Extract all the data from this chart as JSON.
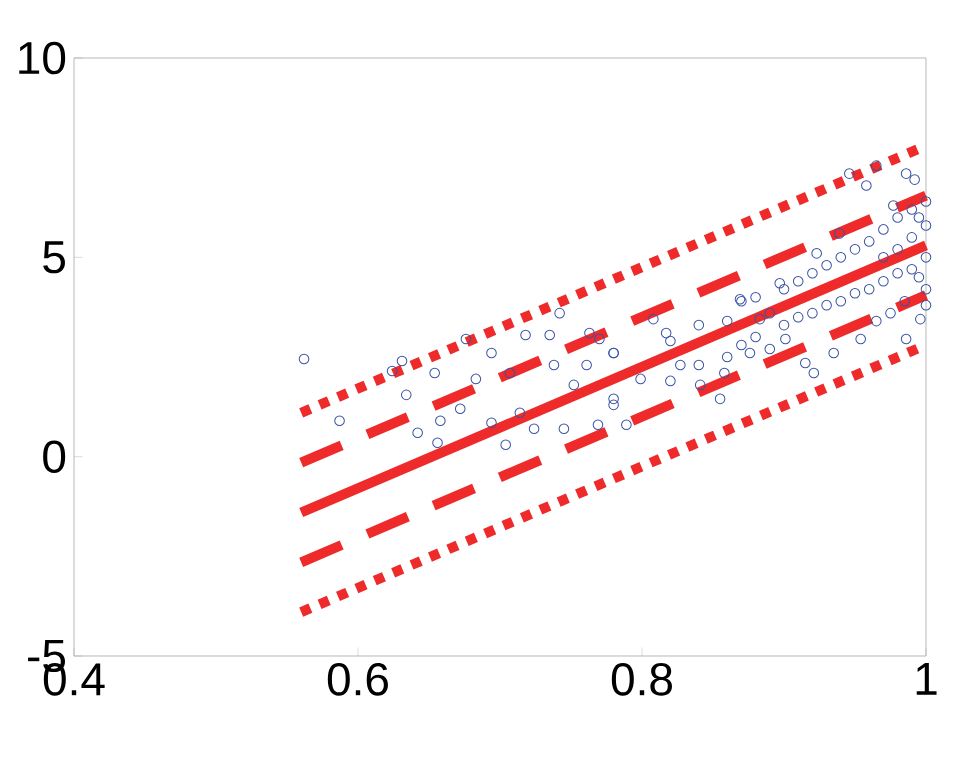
{
  "chart_data": {
    "type": "scatter",
    "xlim": [
      0.4,
      1
    ],
    "ylim": [
      -5,
      10
    ],
    "xticks": [
      0.4,
      0.6,
      0.8,
      1
    ],
    "yticks": [
      -5,
      0,
      5,
      10
    ],
    "series": [
      {
        "type": "scatter",
        "marker": "circle",
        "color": "#3953a4",
        "x": [
          0.562,
          0.587,
          0.631,
          0.624,
          0.654,
          0.634,
          0.642,
          0.658,
          0.656,
          0.676,
          0.672,
          0.683,
          0.694,
          0.694,
          0.707,
          0.718,
          0.714,
          0.724,
          0.735,
          0.742,
          0.738,
          0.745,
          0.752,
          0.763,
          0.769,
          0.761,
          0.78,
          0.78,
          0.704,
          0.77,
          0.789,
          0.78,
          0.799,
          0.817,
          0.841,
          0.855,
          0.858,
          0.869,
          0.883,
          0.897,
          0.915,
          0.921,
          0.923,
          0.939,
          0.946,
          0.958,
          0.965,
          0.986,
          0.992,
          0.977,
          0.986,
          0.996,
          0.954,
          0.935,
          0.901,
          0.876,
          0.827,
          0.808,
          0.78,
          0.82,
          0.82,
          0.84,
          0.84,
          0.86,
          0.86,
          0.87,
          0.87,
          0.88,
          0.88,
          0.89,
          0.89,
          0.9,
          0.9,
          0.91,
          0.91,
          0.92,
          0.92,
          0.93,
          0.93,
          0.94,
          0.94,
          0.95,
          0.95,
          0.96,
          0.96,
          0.97,
          0.97,
          0.98,
          0.98,
          0.99,
          0.99,
          1.0,
          1.0,
          1.0,
          1.0,
          0.99,
          0.98,
          0.97,
          1.0,
          0.995,
          0.995,
          0.985,
          0.975,
          0.965
        ],
        "values": [
          2.45,
          0.9,
          2.4,
          2.15,
          2.1,
          1.55,
          0.6,
          0.9,
          0.35,
          2.95,
          1.2,
          1.95,
          2.6,
          0.85,
          2.1,
          3.05,
          1.1,
          0.7,
          3.05,
          3.6,
          2.3,
          0.7,
          1.8,
          3.1,
          0.8,
          2.3,
          1.45,
          2.6,
          0.3,
          2.95,
          0.8,
          1.3,
          1.95,
          3.1,
          1.8,
          1.45,
          2.1,
          3.95,
          3.45,
          4.35,
          2.35,
          2.1,
          5.1,
          5.6,
          7.1,
          6.8,
          7.3,
          7.1,
          6.95,
          6.3,
          2.95,
          3.45,
          2.95,
          2.6,
          2.95,
          2.6,
          2.3,
          3.45,
          2.6,
          2.9,
          1.9,
          3.3,
          2.3,
          3.4,
          2.5,
          3.9,
          2.8,
          4.0,
          3.0,
          3.6,
          2.7,
          4.2,
          3.3,
          4.4,
          3.5,
          4.6,
          3.6,
          4.8,
          3.8,
          5.0,
          3.9,
          5.2,
          4.1,
          5.4,
          4.2,
          5.7,
          4.4,
          6.0,
          4.6,
          6.2,
          4.7,
          6.4,
          5.0,
          4.2,
          3.8,
          5.5,
          5.2,
          5.0,
          5.8,
          6.0,
          4.5,
          3.9,
          3.6,
          3.4
        ]
      },
      {
        "type": "line",
        "line_style": "solid",
        "color": "#ee2a2a",
        "x": [
          0.56,
          1
        ],
        "values": [
          -1.4,
          5.3
        ]
      },
      {
        "type": "line",
        "line_style": "dashed",
        "color": "#ee2a2a",
        "x": [
          0.56,
          1
        ],
        "values": [
          -0.15,
          6.55
        ]
      },
      {
        "type": "line",
        "line_style": "dashed",
        "color": "#ee2a2a",
        "x": [
          0.56,
          1
        ],
        "values": [
          -2.65,
          4.05
        ]
      },
      {
        "type": "line",
        "line_style": "dotted",
        "color": "#ee2a2a",
        "x": [
          0.56,
          1
        ],
        "values": [
          1.1,
          7.8
        ]
      },
      {
        "type": "line",
        "line_style": "dotted",
        "color": "#ee2a2a",
        "x": [
          0.56,
          1
        ],
        "values": [
          -3.9,
          2.8
        ]
      }
    ]
  }
}
